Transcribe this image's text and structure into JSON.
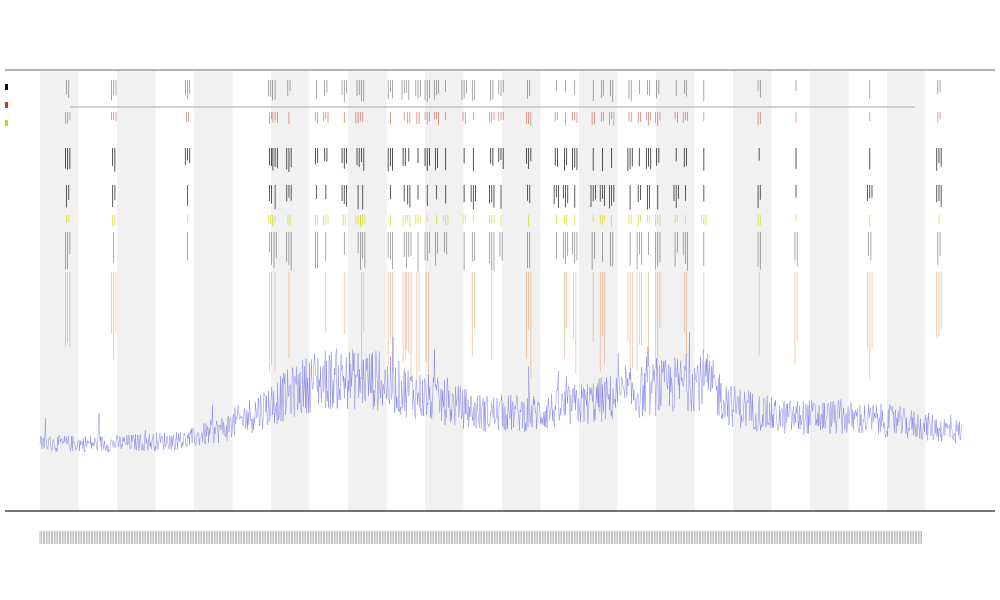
{
  "chart_data": {
    "type": "line",
    "title": "",
    "subtitle_1": "",
    "subtitle_2": "",
    "xlabel": "",
    "ylabel": "",
    "grid": false,
    "band_count": 12,
    "band_color": "#f1f1f1",
    "legend_position": "left",
    "legend": [
      {
        "name": "",
        "color": "#111111",
        "marker": "square"
      },
      {
        "name": "",
        "color": "#c0392b",
        "marker": "square"
      },
      {
        "name": "",
        "color": "#d4d400",
        "marker": "square"
      }
    ],
    "series": [
      {
        "name": "",
        "color": "#6a6ae6",
        "kind": "trace"
      },
      {
        "name": "",
        "color": "#111111",
        "kind": "event"
      },
      {
        "name": "",
        "color": "#c0392b",
        "kind": "event"
      },
      {
        "name": "",
        "color": "#d4d400",
        "kind": "event"
      },
      {
        "name": "",
        "color": "#e07b39",
        "kind": "event"
      }
    ],
    "trace_profile_x": [
      0,
      0.08,
      0.16,
      0.2,
      0.24,
      0.3,
      0.36,
      0.42,
      0.48,
      0.54,
      0.6,
      0.66,
      0.72,
      0.75,
      0.8,
      0.86,
      0.92,
      1.0
    ],
    "trace_profile_y": [
      0.03,
      0.03,
      0.04,
      0.07,
      0.12,
      0.2,
      0.2,
      0.15,
      0.11,
      0.11,
      0.14,
      0.17,
      0.2,
      0.13,
      0.1,
      0.1,
      0.09,
      0.06
    ],
    "event_positions": [
      0.03,
      0.08,
      0.16,
      0.25,
      0.255,
      0.27,
      0.3,
      0.31,
      0.33,
      0.345,
      0.35,
      0.38,
      0.395,
      0.4,
      0.41,
      0.42,
      0.43,
      0.44,
      0.46,
      0.47,
      0.49,
      0.5,
      0.53,
      0.56,
      0.57,
      0.58,
      0.6,
      0.61,
      0.62,
      0.64,
      0.65,
      0.66,
      0.67,
      0.69,
      0.7,
      0.72,
      0.78,
      0.82,
      0.9,
      0.975
    ]
  }
}
